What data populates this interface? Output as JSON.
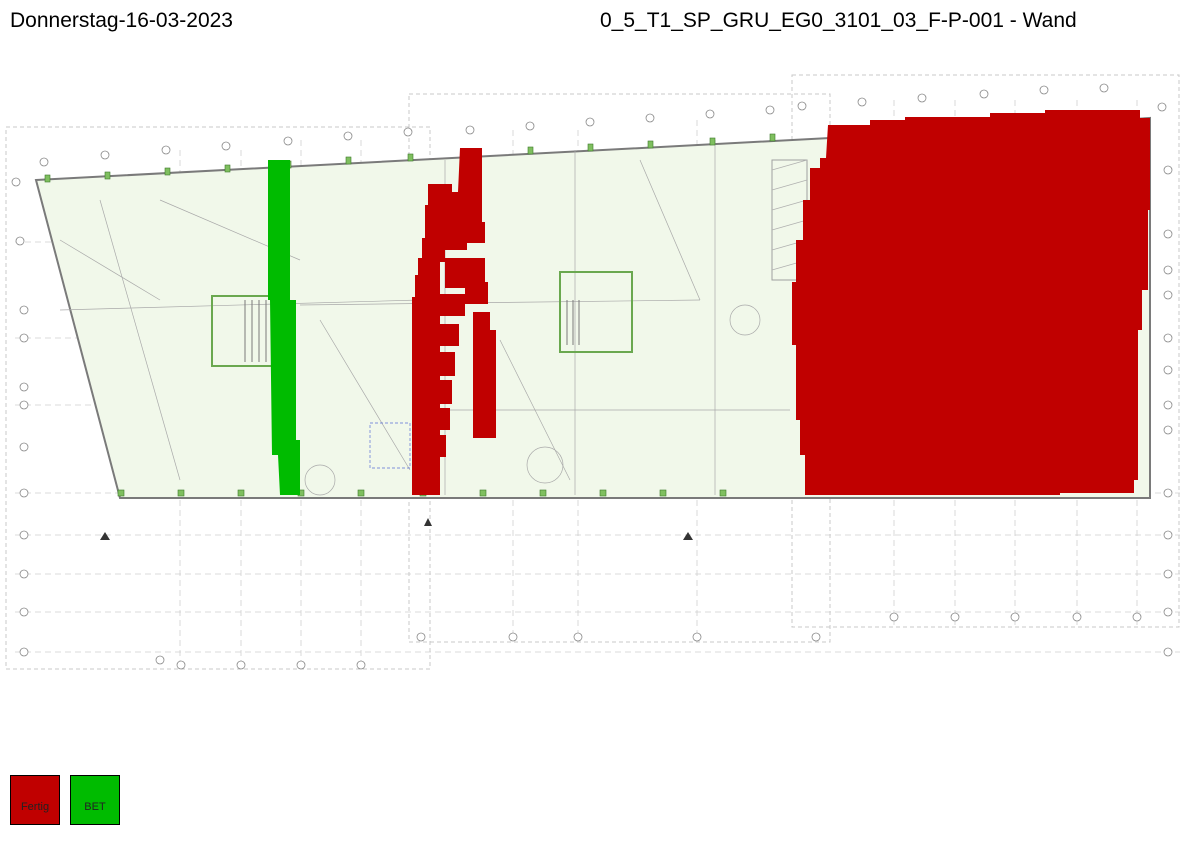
{
  "header": {
    "date": "Donnerstag-16-03-2023",
    "title": "0_5_T1_SP_GRU_EG0_3101_03_F-P-001 - Wand"
  },
  "colors": {
    "fertig": "#c00000",
    "bet": "#00bb00",
    "floor": "#f1f8ea",
    "line": "#8a8a8a",
    "structure": "#6aa84f"
  },
  "legend": [
    {
      "label": "Fertig",
      "color": "#c00000"
    },
    {
      "label": "BET",
      "color": "#00bb00"
    }
  ],
  "drawing": {
    "description_icons": [
      "column-marker-icon",
      "grid-axis-bubble-icon",
      "north-arrow-icon"
    ]
  }
}
